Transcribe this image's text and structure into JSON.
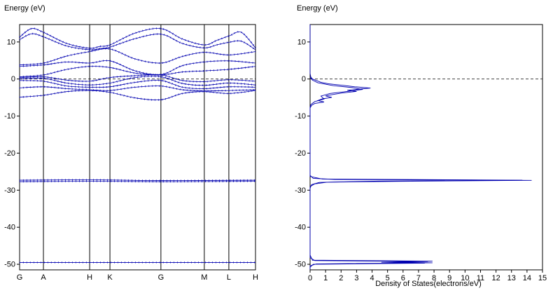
{
  "chart_data": [
    {
      "type": "line",
      "title": "Energy (eV)",
      "ylabel": "Energy (eV)",
      "ylim": [
        -51.5,
        14.7
      ],
      "yticks": [
        10,
        0,
        -10,
        -20,
        -30,
        -40,
        -50
      ],
      "fermi_energy": 0,
      "grid": "vertical-kpoint-lines",
      "line_color": "#0000b0",
      "kpoint_labels": [
        "G",
        "A",
        "H",
        "K",
        "G",
        "M",
        "L",
        "H"
      ],
      "kpoint_positions": [
        0,
        0.101,
        0.297,
        0.383,
        0.599,
        0.783,
        0.887,
        1.0
      ],
      "bands": [
        [
          [
            0,
            11.3
          ],
          [
            0.05,
            13.6
          ],
          [
            0.101,
            12.6
          ],
          [
            0.2,
            9.6
          ],
          [
            0.297,
            8.3
          ],
          [
            0.34,
            8.8
          ],
          [
            0.383,
            9.2
          ],
          [
            0.49,
            12.4
          ],
          [
            0.599,
            13.6
          ],
          [
            0.69,
            10.8
          ],
          [
            0.783,
            9.2
          ],
          [
            0.835,
            10.4
          ],
          [
            0.887,
            11.6
          ],
          [
            0.94,
            12.6
          ],
          [
            1,
            8.4
          ]
        ],
        [
          [
            0,
            10.6
          ],
          [
            0.05,
            12.2
          ],
          [
            0.101,
            11.4
          ],
          [
            0.2,
            8.9
          ],
          [
            0.297,
            7.9
          ],
          [
            0.34,
            8.2
          ],
          [
            0.383,
            8.6
          ],
          [
            0.49,
            10.9
          ],
          [
            0.599,
            12.1
          ],
          [
            0.69,
            9.6
          ],
          [
            0.783,
            8.4
          ],
          [
            0.835,
            9.2
          ],
          [
            0.887,
            9.9
          ],
          [
            0.94,
            10.2
          ],
          [
            1,
            7.9
          ]
        ],
        [
          [
            0,
            3.8
          ],
          [
            0.101,
            4.3
          ],
          [
            0.2,
            6.2
          ],
          [
            0.297,
            7.4
          ],
          [
            0.383,
            8.1
          ],
          [
            0.49,
            5.4
          ],
          [
            0.599,
            4.3
          ],
          [
            0.69,
            6.1
          ],
          [
            0.783,
            7.2
          ],
          [
            0.887,
            6.5
          ],
          [
            1,
            7.4
          ]
        ],
        [
          [
            0,
            3.4
          ],
          [
            0.101,
            3.8
          ],
          [
            0.2,
            4.6
          ],
          [
            0.297,
            4.3
          ],
          [
            0.383,
            4.9
          ],
          [
            0.49,
            2.2
          ],
          [
            0.599,
            1.2
          ],
          [
            0.69,
            3.6
          ],
          [
            0.783,
            4.6
          ],
          [
            0.887,
            4.9
          ],
          [
            1,
            4.3
          ]
        ],
        [
          [
            0,
            0.6
          ],
          [
            0.101,
            1.1
          ],
          [
            0.2,
            2.6
          ],
          [
            0.297,
            3.4
          ],
          [
            0.383,
            3.1
          ],
          [
            0.49,
            1.6
          ],
          [
            0.599,
            1.1
          ],
          [
            0.69,
            1.9
          ],
          [
            0.783,
            2.2
          ],
          [
            0.887,
            2.6
          ],
          [
            1,
            3.4
          ]
        ],
        [
          [
            0,
            0.4
          ],
          [
            0.101,
            0.6
          ],
          [
            0.2,
            -0.3
          ],
          [
            0.297,
            -0.6
          ],
          [
            0.383,
            0.4
          ],
          [
            0.49,
            0.9
          ],
          [
            0.599,
            1.1
          ],
          [
            0.69,
            -0.4
          ],
          [
            0.783,
            -0.7
          ],
          [
            0.887,
            -0.2
          ],
          [
            1,
            -0.6
          ]
        ],
        [
          [
            0,
            0.1
          ],
          [
            0.101,
            0.2
          ],
          [
            0.2,
            -1.1
          ],
          [
            0.297,
            -1.6
          ],
          [
            0.383,
            -1.1
          ],
          [
            0.49,
            0.4
          ],
          [
            0.599,
            0.6
          ],
          [
            0.69,
            -1.2
          ],
          [
            0.783,
            -1.7
          ],
          [
            0.887,
            -1.1
          ],
          [
            1,
            -1.6
          ]
        ],
        [
          [
            0,
            -0.4
          ],
          [
            0.101,
            -0.6
          ],
          [
            0.2,
            -1.9
          ],
          [
            0.297,
            -2.2
          ],
          [
            0.383,
            -2.1
          ],
          [
            0.49,
            -0.9
          ],
          [
            0.599,
            -0.4
          ],
          [
            0.69,
            -2.2
          ],
          [
            0.783,
            -2.6
          ],
          [
            0.887,
            -2.1
          ],
          [
            1,
            -2.2
          ]
        ],
        [
          [
            0,
            -2.4
          ],
          [
            0.101,
            -2.1
          ],
          [
            0.2,
            -2.6
          ],
          [
            0.297,
            -2.9
          ],
          [
            0.383,
            -3.1
          ],
          [
            0.49,
            -2.2
          ],
          [
            0.599,
            -1.9
          ],
          [
            0.69,
            -2.9
          ],
          [
            0.783,
            -3.2
          ],
          [
            0.887,
            -3.1
          ],
          [
            1,
            -2.9
          ]
        ],
        [
          [
            0,
            -4.9
          ],
          [
            0.101,
            -4.4
          ],
          [
            0.2,
            -3.4
          ],
          [
            0.297,
            -3.1
          ],
          [
            0.383,
            -3.6
          ],
          [
            0.49,
            -5.1
          ],
          [
            0.599,
            -5.6
          ],
          [
            0.69,
            -3.9
          ],
          [
            0.783,
            -3.4
          ],
          [
            0.887,
            -3.9
          ],
          [
            1,
            -3.1
          ]
        ],
        [
          [
            0,
            -27.3
          ],
          [
            0.3,
            -27.2
          ],
          [
            0.599,
            -27.4
          ],
          [
            1,
            -27.3
          ]
        ],
        [
          [
            0,
            -27.7
          ],
          [
            0.3,
            -27.6
          ],
          [
            0.599,
            -27.7
          ],
          [
            1,
            -27.6
          ]
        ],
        [
          [
            0,
            -49.5
          ],
          [
            0.5,
            -49.5
          ],
          [
            1,
            -49.5
          ]
        ]
      ]
    },
    {
      "type": "line",
      "title": "Energy (eV)",
      "xlabel": "Density of States(electrons/eV)",
      "xlim": [
        0,
        15
      ],
      "xticks": [
        0,
        1,
        2,
        3,
        4,
        5,
        6,
        7,
        8,
        9,
        10,
        11,
        12,
        13,
        14,
        15
      ],
      "ylim": [
        -51.5,
        14.7
      ],
      "yticks": [
        10,
        0,
        -10,
        -20,
        -30,
        -40,
        -50
      ],
      "fermi_energy": 0,
      "line_color": "#0000b0",
      "dos_curves": [
        [
          [
            14.7,
            0
          ],
          [
            1.5,
            0
          ],
          [
            0.5,
            0.05
          ],
          [
            0,
            0.15
          ],
          [
            -0.4,
            0.4
          ],
          [
            -0.9,
            0.7
          ],
          [
            -1.3,
            1.2
          ],
          [
            -1.7,
            2.1
          ],
          [
            -2.1,
            2.9
          ],
          [
            -2.45,
            3.9
          ],
          [
            -2.75,
            3.1
          ],
          [
            -3.05,
            2.4
          ],
          [
            -3.35,
            3.0
          ],
          [
            -3.75,
            2.1
          ],
          [
            -4.15,
            1.5
          ],
          [
            -4.55,
            1.0
          ],
          [
            -4.95,
            1.4
          ],
          [
            -5.35,
            0.8
          ],
          [
            -5.8,
            0.5
          ],
          [
            -6.2,
            0.9
          ],
          [
            -6.6,
            0.3
          ],
          [
            -7.1,
            0.1
          ],
          [
            -7.8,
            0
          ],
          [
            -26,
            0
          ],
          [
            -26.8,
            0.2
          ],
          [
            -27.1,
            1.6
          ],
          [
            -27.35,
            14.3
          ],
          [
            -27.6,
            5.8
          ],
          [
            -27.85,
            1.1
          ],
          [
            -28.3,
            0.3
          ],
          [
            -28.9,
            0.05
          ],
          [
            -29.6,
            0
          ],
          [
            -47.5,
            0
          ],
          [
            -48.9,
            0.15
          ],
          [
            -49.15,
            7.9
          ],
          [
            -49.4,
            5.3
          ],
          [
            -49.6,
            7.9
          ],
          [
            -49.9,
            0.4
          ],
          [
            -50.4,
            0
          ],
          [
            -51.4,
            0
          ]
        ],
        [
          [
            0.5,
            0
          ],
          [
            -0.3,
            0.15
          ],
          [
            -1,
            0.5
          ],
          [
            -1.8,
            1.5
          ],
          [
            -2.3,
            2.7
          ],
          [
            -2.8,
            3.4
          ],
          [
            -3.3,
            2.5
          ],
          [
            -3.9,
            1.3
          ],
          [
            -4.6,
            0.7
          ],
          [
            -5.4,
            0.9
          ],
          [
            -6.1,
            0.3
          ],
          [
            -6.9,
            0.05
          ],
          [
            -7.6,
            0
          ],
          [
            -26.3,
            0
          ],
          [
            -27.0,
            0.8
          ],
          [
            -27.3,
            13.7
          ],
          [
            -27.55,
            4.4
          ],
          [
            -27.9,
            0.6
          ],
          [
            -28.5,
            0.1
          ],
          [
            -29.2,
            0
          ],
          [
            -48.2,
            0
          ],
          [
            -49.0,
            0.3
          ],
          [
            -49.25,
            7.6
          ],
          [
            -49.45,
            4.6
          ],
          [
            -49.7,
            7.4
          ],
          [
            -50.0,
            0.2
          ],
          [
            -50.8,
            0
          ]
        ]
      ]
    }
  ]
}
